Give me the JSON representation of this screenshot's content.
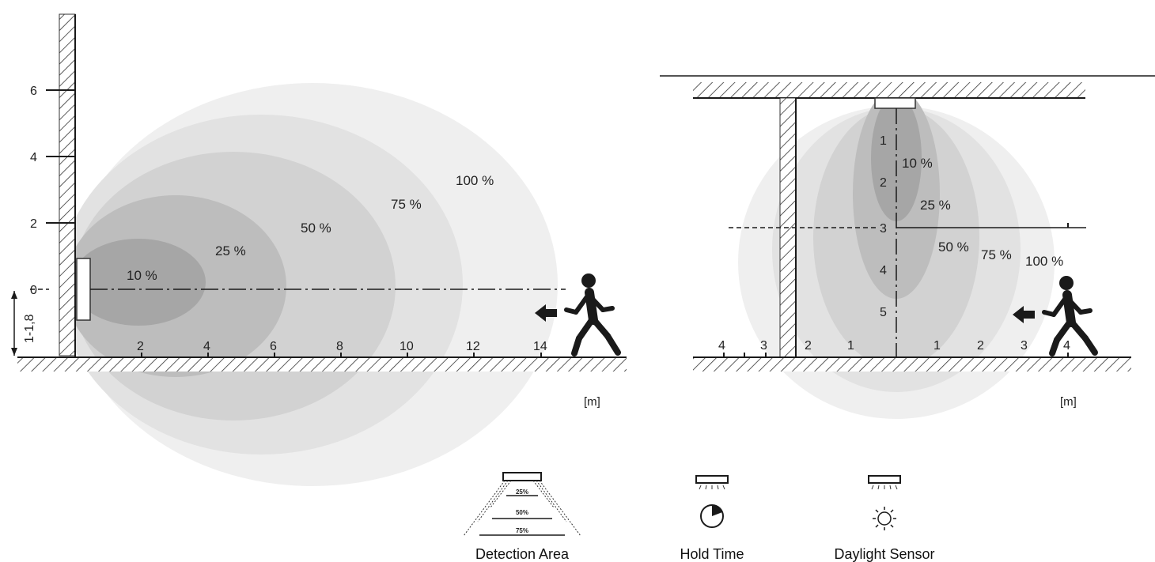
{
  "side_view": {
    "zones": [
      "100 %",
      "75 %",
      "50 %",
      "25 %",
      "10 %"
    ],
    "y_ticks": [
      "6",
      "4",
      "2",
      "0"
    ],
    "mount_height": "1-1,8",
    "x_ticks": [
      "2",
      "4",
      "6",
      "8",
      "10",
      "12",
      "14"
    ],
    "unit": "[m]"
  },
  "top_view": {
    "zones": [
      "10 %",
      "25 %",
      "50 %",
      "75 %",
      "100 %"
    ],
    "depth_ticks": [
      "1",
      "2",
      "3",
      "4",
      "5"
    ],
    "width_ticks_left": [
      "4",
      "3",
      "2",
      "1"
    ],
    "width_ticks_right": [
      "1",
      "2",
      "3",
      "4"
    ],
    "unit": "[m]"
  },
  "legend": {
    "detection_area": {
      "label": "Detection Area",
      "levels": [
        "25%",
        "50%",
        "75%"
      ]
    },
    "hold_time": {
      "label": "Hold Time",
      "icon": "clock-icon"
    },
    "daylight_sensor": {
      "label": "Daylight Sensor",
      "icon": "sun-icon"
    }
  },
  "colors": {
    "zone_100": "#efefef",
    "zone_75": "#e2e2e2",
    "zone_50": "#d2d2d2",
    "zone_25": "#bdbdbd",
    "zone_10": "#a6a6a6",
    "line": "#1a1a1a"
  }
}
